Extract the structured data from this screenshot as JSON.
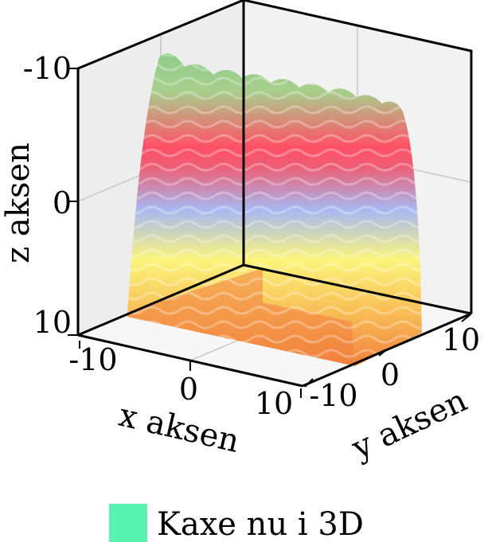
{
  "chart_data": {
    "type": "surface3d",
    "title": "",
    "xlabel": "x aksen",
    "ylabel": "y aksen",
    "zlabel": "z aksen",
    "x_ticks": [
      "-10",
      "0",
      "10"
    ],
    "y_ticks": [
      "-10",
      "0",
      "10"
    ],
    "z_ticks": [
      "-10",
      "0",
      "10"
    ],
    "xlim": [
      -12,
      12
    ],
    "ylim": [
      -12,
      12
    ],
    "zlim": [
      -15,
      10
    ],
    "legend": {
      "label": "Kaxe nu i 3D",
      "color": "#57f2b0",
      "position": "bottom"
    },
    "colormap": [
      "#f2803c",
      "#f8c057",
      "#fbf57c",
      "#a7b8f2",
      "#ff5066",
      "#8ecc8a"
    ],
    "grid": true
  }
}
